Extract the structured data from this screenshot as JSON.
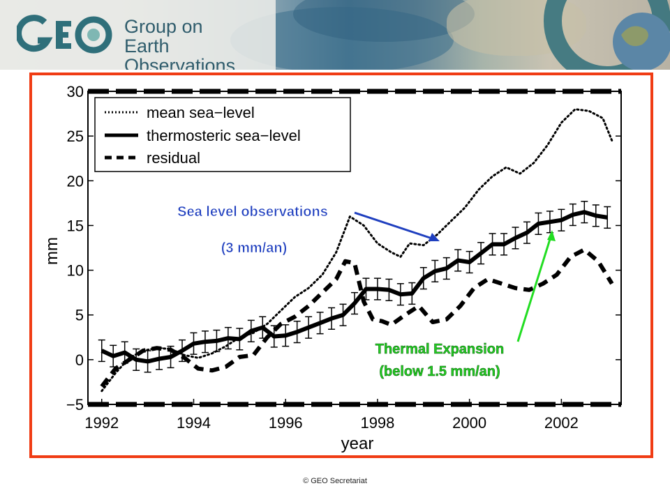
{
  "banner": {
    "logo_text": "GEO",
    "org_name_line1": "Group on",
    "org_name_line2": "Earth Observations"
  },
  "footer": {
    "copyright": "© GEO Secretariat"
  },
  "colors": {
    "frame": "#f03c14",
    "blue_annotation": "#1f3fbf",
    "green_annotation": "#22cc22",
    "logo_teal": "#2f6f7a"
  },
  "chart_data": {
    "type": "line",
    "xlabel": "year",
    "ylabel": "mm",
    "xlim": [
      1991.7,
      2003.3
    ],
    "ylim": [
      -5,
      30
    ],
    "xticks": [
      1992,
      1994,
      1996,
      1998,
      2000,
      2002
    ],
    "xtick_labels": [
      "1992",
      "1994",
      "1996",
      "1998",
      "2000",
      "2002"
    ],
    "yticks": [
      -5,
      0,
      5,
      10,
      15,
      20,
      25,
      30
    ],
    "ytick_labels": [
      "−5",
      "0",
      "5",
      "10",
      "15",
      "20",
      "25",
      "30"
    ],
    "legend": {
      "placement": "top-left",
      "entries": [
        "mean sea−level",
        "thermosteric sea−level",
        "residual"
      ]
    },
    "series": [
      {
        "name": "mean sea−level",
        "style": "dotted",
        "x": [
          1992.0,
          1992.3,
          1992.6,
          1992.9,
          1993.2,
          1993.5,
          1993.8,
          1994.1,
          1994.4,
          1994.7,
          1995.0,
          1995.3,
          1995.6,
          1995.9,
          1996.2,
          1996.5,
          1996.8,
          1997.1,
          1997.4,
          1997.7,
          1998.0,
          1998.3,
          1998.5,
          1998.7,
          1999.0,
          1999.3,
          1999.6,
          1999.9,
          2000.2,
          2000.5,
          2000.8,
          2001.1,
          2001.4,
          2001.7,
          2002.0,
          2002.3,
          2002.6,
          2002.9,
          2003.1
        ],
        "y": [
          -3.5,
          -1.5,
          0.2,
          1.0,
          1.3,
          1.2,
          0.5,
          0.2,
          0.7,
          1.5,
          2.5,
          3.0,
          4.0,
          5.5,
          7.0,
          8.0,
          9.5,
          12.0,
          16.0,
          15.0,
          13.0,
          12.0,
          11.5,
          13.0,
          12.8,
          14.0,
          15.5,
          17.0,
          19.0,
          20.5,
          21.5,
          20.8,
          22.0,
          24.0,
          26.5,
          28.0,
          27.8,
          27.0,
          24.5
        ]
      },
      {
        "name": "thermosteric sea−level",
        "style": "solid",
        "x": [
          1992.0,
          1992.25,
          1992.5,
          1992.75,
          1993.0,
          1993.25,
          1993.5,
          1993.75,
          1994.0,
          1994.25,
          1994.5,
          1994.75,
          1995.0,
          1995.25,
          1995.5,
          1995.75,
          1996.0,
          1996.25,
          1996.5,
          1996.75,
          1997.0,
          1997.25,
          1997.5,
          1997.75,
          1998.0,
          1998.25,
          1998.5,
          1998.75,
          1999.0,
          1999.25,
          1999.5,
          1999.75,
          2000.0,
          2000.25,
          2000.5,
          2000.75,
          2001.0,
          2001.25,
          2001.5,
          2001.75,
          2002.0,
          2002.25,
          2002.5,
          2002.75,
          2003.0
        ],
        "y": [
          1.0,
          0.4,
          0.8,
          0.0,
          -0.2,
          0.1,
          0.3,
          1.0,
          1.8,
          2.0,
          2.1,
          2.4,
          2.3,
          3.2,
          3.6,
          2.6,
          2.7,
          3.1,
          3.6,
          4.1,
          4.6,
          5.0,
          6.3,
          7.9,
          7.9,
          7.8,
          7.3,
          7.4,
          9.1,
          9.9,
          10.2,
          11.1,
          10.9,
          11.9,
          12.9,
          12.9,
          13.6,
          14.2,
          15.2,
          15.4,
          15.6,
          16.2,
          16.5,
          16.1,
          15.9
        ],
        "errorbar": 1.2
      },
      {
        "name": "residual",
        "style": "dashed",
        "x": [
          1992.0,
          1992.3,
          1992.6,
          1992.9,
          1993.2,
          1993.5,
          1993.8,
          1994.1,
          1994.4,
          1994.7,
          1995.0,
          1995.3,
          1995.6,
          1995.9,
          1996.2,
          1996.5,
          1996.8,
          1997.1,
          1997.3,
          1997.5,
          1997.7,
          1997.9,
          1998.1,
          1998.3,
          1998.6,
          1998.9,
          1999.2,
          1999.5,
          1999.8,
          2000.1,
          2000.4,
          2000.7,
          2001.0,
          2001.3,
          2001.6,
          2001.9,
          2002.2,
          2002.5,
          2002.8,
          2003.1
        ],
        "y": [
          -3.0,
          -1.0,
          0.0,
          1.0,
          1.3,
          1.1,
          0.2,
          -1.0,
          -1.2,
          -0.8,
          0.3,
          0.5,
          2.5,
          4.0,
          4.8,
          6.0,
          7.5,
          9.0,
          11.0,
          10.8,
          6.5,
          4.5,
          4.3,
          3.9,
          5.0,
          6.0,
          4.2,
          4.5,
          6.0,
          8.0,
          9.0,
          8.5,
          8.0,
          7.8,
          8.5,
          9.5,
          11.5,
          12.3,
          11.0,
          8.5
        ]
      }
    ],
    "annotations": [
      {
        "line1": "Sea level observations",
        "line2": "(3 mm/an)",
        "color": "blue"
      },
      {
        "line1": "Thermal Expansion",
        "line2": "(below 1.5 mm/an)",
        "color": "green"
      }
    ]
  }
}
